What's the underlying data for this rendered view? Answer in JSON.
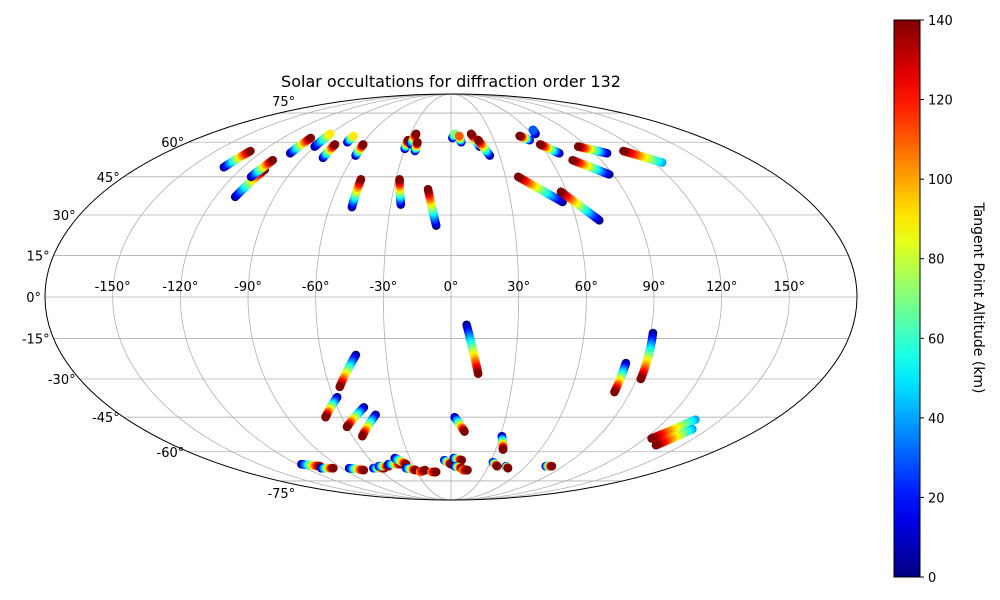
{
  "chart_data": {
    "type": "scatter",
    "projection": "mollweide",
    "title": "Solar occultations for diffraction order 132",
    "lon_tick_labels": [
      "-150°",
      "-120°",
      "-90°",
      "-60°",
      "-30°",
      "0°",
      "30°",
      "60°",
      "90°",
      "120°",
      "150°"
    ],
    "lon_tick_values": [
      -150,
      -120,
      -90,
      -60,
      -30,
      0,
      30,
      60,
      90,
      120,
      150
    ],
    "lat_tick_labels": [
      "75°",
      "60°",
      "45°",
      "30°",
      "15°",
      "0°",
      "-15°",
      "-30°",
      "-45°",
      "-60°",
      "-75°"
    ],
    "lat_tick_values": [
      75,
      60,
      45,
      30,
      15,
      0,
      -15,
      -30,
      -45,
      -60,
      -75
    ],
    "grid": true,
    "colorbar": {
      "label": "Tangent Point Altitude (km)",
      "min": 0,
      "max": 140,
      "colormap": "jet",
      "tick_labels": [
        "0",
        "20",
        "40",
        "60",
        "80",
        "100",
        "120",
        "140"
      ],
      "tick_values": [
        0,
        20,
        40,
        60,
        80,
        100,
        120,
        140
      ]
    },
    "tracks": [
      {
        "lon": [
          -131,
          -128
        ],
        "lat": [
          49,
          56
        ],
        "alt": [
          0,
          140
        ]
      },
      {
        "lon": [
          -110,
          -106
        ],
        "lat": [
          37,
          48
        ],
        "alt": [
          0,
          140
        ]
      },
      {
        "lon": [
          -110,
          -107
        ],
        "lat": [
          45,
          52
        ],
        "alt": [
          0,
          140
        ]
      },
      {
        "lon": [
          -101,
          -100
        ],
        "lat": [
          55,
          62
        ],
        "alt": [
          0,
          140
        ]
      },
      {
        "lon": [
          -90,
          -90
        ],
        "lat": [
          58,
          64
        ],
        "alt": [
          0,
          90
        ]
      },
      {
        "lon": [
          -78,
          -78
        ],
        "lat": [
          53,
          59
        ],
        "alt": [
          0,
          140
        ]
      },
      {
        "lon": [
          -71,
          -71
        ],
        "lat": [
          60,
          63
        ],
        "alt": [
          0,
          90
        ]
      },
      {
        "lon": [
          -59,
          -59
        ],
        "lat": [
          54,
          59
        ],
        "alt": [
          0,
          140
        ]
      },
      {
        "lon": [
          -49,
          -49
        ],
        "lat": [
          33,
          44
        ],
        "alt": [
          0,
          140
        ]
      },
      {
        "lon": [
          -30,
          -30
        ],
        "lat": [
          57,
          61
        ],
        "alt": [
          0,
          140
        ]
      },
      {
        "lon": [
          -27,
          -26
        ],
        "lat": [
          59,
          64
        ],
        "alt": [
          0,
          140
        ]
      },
      {
        "lon": [
          -23,
          -23
        ],
        "lat": [
          56,
          60
        ],
        "alt": [
          0,
          140
        ]
      },
      {
        "lon": [
          -25,
          -28
        ],
        "lat": [
          34,
          44
        ],
        "alt": [
          0,
          140
        ]
      },
      {
        "lon": [
          -7,
          -12
        ],
        "lat": [
          26,
          40
        ],
        "alt": [
          0,
          140
        ]
      },
      {
        "lon": [
          1,
          3
        ],
        "lat": [
          62,
          64
        ],
        "alt": [
          0,
          70
        ]
      },
      {
        "lon": [
          7,
          6
        ],
        "lat": [
          60,
          63
        ],
        "alt": [
          0,
          110
        ]
      },
      {
        "lon": [
          19,
          15
        ],
        "lat": [
          58,
          64
        ],
        "alt": [
          0,
          140
        ]
      },
      {
        "lon": [
          24,
          19
        ],
        "lat": [
          54,
          61
        ],
        "alt": [
          0,
          140
        ]
      },
      {
        "lon": [
          56,
          37
        ],
        "lat": [
          35,
          45
        ],
        "alt": [
          0,
          140
        ]
      },
      {
        "lon": [
          71,
          57
        ],
        "lat": [
          28,
          39
        ],
        "alt": [
          0,
          140
        ]
      },
      {
        "lon": [
          55,
          50
        ],
        "lat": [
          61,
          63
        ],
        "alt": [
          0,
          140
        ]
      },
      {
        "lon": [
          68,
          60
        ],
        "lat": [
          55,
          59
        ],
        "alt": [
          0,
          140
        ]
      },
      {
        "lon": [
          63,
          64
        ],
        "lat": [
          64,
          66
        ],
        "alt": [
          0,
          30
        ]
      },
      {
        "lon": [
          88,
          73
        ],
        "lat": [
          46,
          52
        ],
        "alt": [
          0,
          140
        ]
      },
      {
        "lon": [
          98,
          84
        ],
        "lat": [
          55,
          58
        ],
        "alt": [
          0,
          140
        ]
      },
      {
        "lon": [
          125,
          110
        ],
        "lat": [
          51,
          56
        ],
        "alt": [
          40,
          140
        ]
      },
      {
        "lon": [
          7,
          13
        ],
        "lat": [
          -10,
          -28
        ],
        "alt": [
          0,
          140
        ]
      },
      {
        "lon": [
          -44,
          -55
        ],
        "lat": [
          -21,
          -33
        ],
        "alt": [
          0,
          140
        ]
      },
      {
        "lon": [
          -58,
          -69
        ],
        "lat": [
          -37,
          -45
        ],
        "alt": [
          0,
          140
        ]
      },
      {
        "lon": [
          -46,
          -60
        ],
        "lat": [
          -41,
          -49
        ],
        "alt": [
          0,
          140
        ]
      },
      {
        "lon": [
          -41,
          -54
        ],
        "lat": [
          -44,
          -53
        ],
        "alt": [
          0,
          140
        ]
      },
      {
        "lon": [
          2,
          8
        ],
        "lat": [
          -45,
          -51
        ],
        "alt": [
          0,
          140
        ]
      },
      {
        "lon": [
          82,
          82
        ],
        "lat": [
          -24,
          -35
        ],
        "alt": [
          0,
          140
        ]
      },
      {
        "lon": [
          91,
          92
        ],
        "lat": [
          -13,
          -30
        ],
        "alt": [
          0,
          140
        ]
      },
      {
        "lon": [
          31,
          35
        ],
        "lat": [
          -53,
          -59
        ],
        "alt": [
          0,
          140
        ]
      },
      {
        "lon": [
          136,
          124
        ],
        "lat": [
          -46,
          -54
        ],
        "alt": [
          40,
          140
        ]
      },
      {
        "lon": [
          141,
          133
        ],
        "lat": [
          -50,
          -57
        ],
        "alt": [
          40,
          140
        ]
      },
      {
        "lon": [
          -117,
          -105
        ],
        "lat": [
          -66,
          -67
        ],
        "alt": [
          0,
          140
        ]
      },
      {
        "lon": [
          -107,
          -97
        ],
        "lat": [
          -68,
          -68
        ],
        "alt": [
          0,
          140
        ]
      },
      {
        "lon": [
          -84,
          -74
        ],
        "lat": [
          -68,
          -69
        ],
        "alt": [
          0,
          140
        ]
      },
      {
        "lon": [
          -64,
          -55
        ],
        "lat": [
          -68,
          -68
        ],
        "alt": [
          0,
          140
        ]
      },
      {
        "lon": [
          -58,
          -50
        ],
        "lat": [
          -67,
          -67
        ],
        "alt": [
          0,
          140
        ]
      },
      {
        "lon": [
          -49,
          -39
        ],
        "lat": [
          -66,
          -66
        ],
        "alt": [
          0,
          140
        ]
      },
      {
        "lon": [
          -41,
          -35
        ],
        "lat": [
          -63,
          -66
        ],
        "alt": [
          0,
          140
        ]
      },
      {
        "lon": [
          -37,
          -30
        ],
        "lat": [
          -68,
          -69
        ],
        "alt": [
          0,
          140
        ]
      },
      {
        "lon": [
          -27,
          -22
        ],
        "lat": [
          -70,
          -69
        ],
        "alt": [
          100,
          140
        ]
      },
      {
        "lon": [
          -17,
          -13
        ],
        "lat": [
          -70,
          -70
        ],
        "alt": [
          100,
          140
        ]
      },
      {
        "lon": [
          -5,
          0
        ],
        "lat": [
          -64,
          -66
        ],
        "alt": [
          0,
          140
        ]
      },
      {
        "lon": [
          2,
          8
        ],
        "lat": [
          -63,
          -64
        ],
        "alt": [
          0,
          140
        ]
      },
      {
        "lon": [
          3,
          9
        ],
        "lat": [
          -67,
          -68
        ],
        "alt": [
          0,
          140
        ]
      },
      {
        "lon": [
          10,
          14
        ],
        "lat": [
          -69,
          -69
        ],
        "alt": [
          100,
          140
        ]
      },
      {
        "lon": [
          32,
          37
        ],
        "lat": [
          -65,
          -67
        ],
        "alt": [
          0,
          140
        ]
      },
      {
        "lon": [
          44,
          47
        ],
        "lat": [
          -67,
          -68
        ],
        "alt": [
          0,
          140
        ]
      },
      {
        "lon": [
          76,
          81
        ],
        "lat": [
          -67,
          -67
        ],
        "alt": [
          0,
          140
        ]
      }
    ]
  }
}
